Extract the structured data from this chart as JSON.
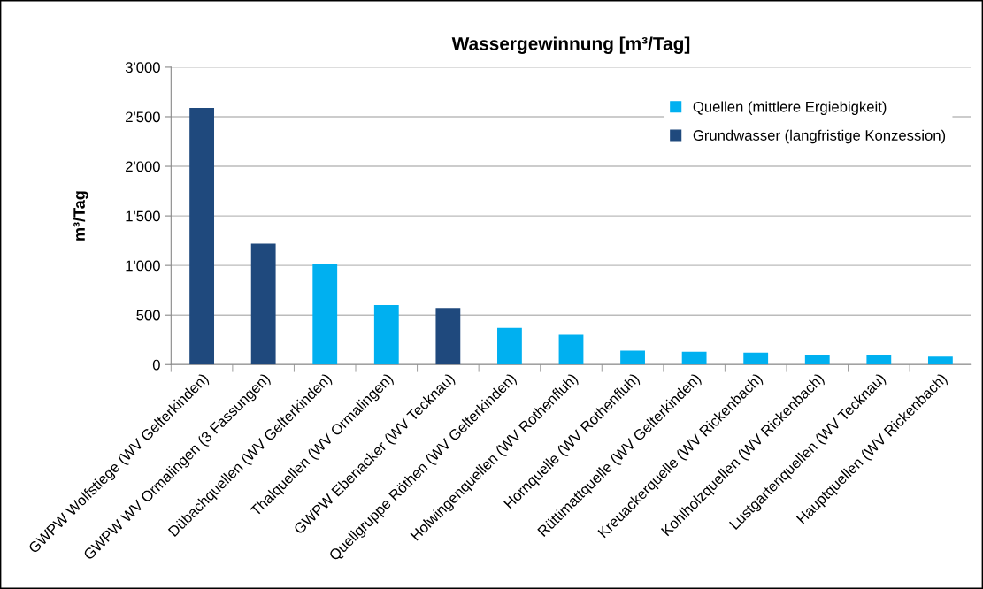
{
  "chart_data": {
    "type": "bar",
    "title": "Wassergewinnung [m³/Tag]",
    "ylabel": "m³/Tag",
    "categories": [
      "GWPW Wolfstiege (WV Gelterkinden)",
      "GWPW WV Ormalingen (3 Fassungen)",
      "Dübachquellen (WV Gelterkinden)",
      "Thalquellen (WV Ormalingen)",
      "GWPW Ebenacker (WV Tecknau)",
      "Quellgruppe Röthen (WV Gelterkinden)",
      "Holwingenquellen (WV Rothenfluh)",
      "Hornquelle (WV Rothenfluh)",
      "Rüttimattquelle (WV Gelterkinden)",
      "Kreuackerquelle (WV Rickenbach)",
      "Kohlholzquellen (WV Rickenbach)",
      "Lustgartenquellen (WV Tecknau)",
      "Hauptquellen (WV Rickenbach)"
    ],
    "series": [
      {
        "name": "Quellen (mittlere Ergiebigkeit)",
        "color": "#00b0f0",
        "values": [
          null,
          null,
          1020,
          600,
          null,
          370,
          300,
          140,
          130,
          120,
          100,
          100,
          80
        ]
      },
      {
        "name": "Grundwasser (langfristige Konzession)",
        "color": "#1f497d",
        "values": [
          2590,
          1220,
          null,
          null,
          570,
          null,
          null,
          null,
          null,
          null,
          null,
          null,
          null
        ]
      }
    ],
    "ylim": [
      0,
      3000
    ],
    "yticks": [
      0,
      500,
      {
        "value": 1000,
        "label": "1'000"
      },
      {
        "value": 1500,
        "label": "1'500"
      },
      {
        "value": 2000,
        "label": "2'000"
      },
      {
        "value": 2500,
        "label": "2'500"
      },
      {
        "value": 3000,
        "label": "3'000"
      }
    ],
    "grid": "y",
    "legend": "top right"
  }
}
